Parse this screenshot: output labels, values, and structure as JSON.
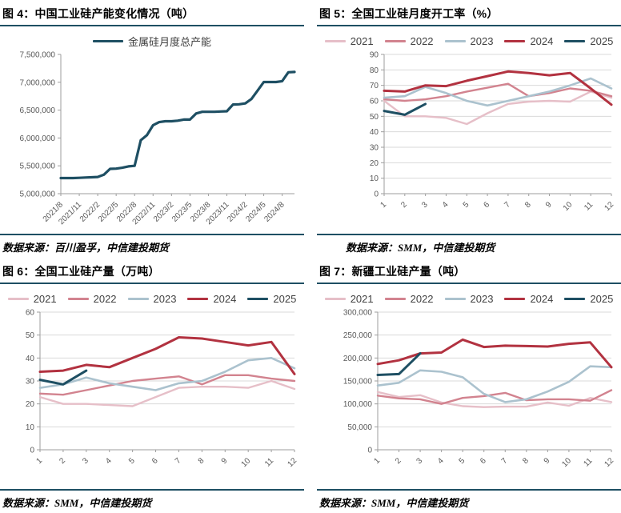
{
  "colors": {
    "accent": "#1e4f63",
    "grid": "#d9d9d9",
    "axis": "#9e9e9e",
    "tick_text": "#595959",
    "year_2021": "#e6bfc8",
    "year_2022": "#d2838f",
    "year_2023": "#abc2ce",
    "year_2024": "#b23240",
    "year_2025": "#1e4f63"
  },
  "panels": [
    {
      "title": "图 4：中国工业硅产能变化情况（吨）",
      "source": "数据来源：百川盈孚，中信建投期货"
    },
    {
      "title": "图 5：全国工业硅月度开工率（%）",
      "source": "数据来源：SMM，中信建投期货"
    },
    {
      "title": "图 6：全国工业硅产量（万吨）",
      "source": "数据来源：SMM，中信建投期货"
    },
    {
      "title": "图 7：新疆工业硅产量（吨）",
      "source": "数据来源：SMM，中信建投期货"
    }
  ],
  "chart_data": [
    {
      "id": "fig4",
      "type": "line",
      "title": "中国工业硅产能变化情况（吨）",
      "grid": false,
      "legend_position": "top",
      "ylim": [
        5000000,
        7500000
      ],
      "y_step": 500000,
      "x_tick_step": 3,
      "x_tick_labels": [
        "2021/8",
        "2021/11",
        "2022/2",
        "2022/5",
        "2022/8",
        "2022/11",
        "2023/2",
        "2023/5",
        "2023/8",
        "2023/11",
        "2024/2",
        "2024/5",
        "2024/8"
      ],
      "series": [
        {
          "name": "金属硅月度总产能",
          "color": "#1e4f63",
          "width": 3.2,
          "values": [
            5280000,
            5280000,
            5280000,
            5285000,
            5290000,
            5295000,
            5300000,
            5340000,
            5445000,
            5450000,
            5465000,
            5490000,
            5500000,
            5960000,
            6050000,
            6230000,
            6285000,
            6300000,
            6300000,
            6310000,
            6330000,
            6330000,
            6440000,
            6470000,
            6470000,
            6470000,
            6475000,
            6480000,
            6600000,
            6605000,
            6620000,
            6700000,
            6850000,
            7005000,
            7005000,
            7005000,
            7020000,
            7180000,
            7185000
          ]
        }
      ]
    },
    {
      "id": "fig5",
      "type": "line",
      "title": "全国工业硅月度开工率（%）",
      "grid": true,
      "legend_position": "top",
      "ylim": [
        0,
        90
      ],
      "y_step": 10,
      "x_tick_step": 1,
      "x_tick_labels": [
        "1",
        "2",
        "3",
        "4",
        "5",
        "6",
        "7",
        "8",
        "9",
        "10",
        "11",
        "12"
      ],
      "series": [
        {
          "name": "2021",
          "color": "#e6bfc8",
          "width": 2.4,
          "values": [
            60,
            50,
            50,
            49,
            45,
            52,
            58,
            59.5,
            60,
            59.5,
            66,
            62
          ]
        },
        {
          "name": "2022",
          "color": "#d2838f",
          "width": 2.4,
          "values": [
            61,
            60,
            61,
            63,
            66,
            68.5,
            71,
            63,
            65,
            68,
            66.5,
            63
          ]
        },
        {
          "name": "2023",
          "color": "#abc2ce",
          "width": 2.6,
          "values": [
            62,
            63,
            69,
            65,
            60,
            57,
            60,
            63,
            66,
            70,
            74.5,
            68
          ]
        },
        {
          "name": "2024",
          "color": "#b23240",
          "width": 3,
          "values": [
            66.5,
            66,
            70,
            69.5,
            73,
            76,
            79,
            78,
            76.5,
            78,
            68,
            57.5
          ]
        },
        {
          "name": "2025",
          "color": "#1e4f63",
          "width": 3,
          "values": [
            53.5,
            51,
            58
          ]
        }
      ]
    },
    {
      "id": "fig6",
      "type": "line",
      "title": "全国工业硅产量（万吨）",
      "grid": true,
      "legend_position": "top",
      "ylim": [
        0,
        60
      ],
      "y_step": 10,
      "x_tick_step": 1,
      "x_tick_labels": [
        "1",
        "2",
        "3",
        "4",
        "5",
        "6",
        "7",
        "8",
        "9",
        "10",
        "11",
        "12"
      ],
      "series": [
        {
          "name": "2021",
          "color": "#e6bfc8",
          "width": 2.4,
          "values": [
            23,
            20,
            20,
            19.5,
            19,
            23,
            27,
            27.5,
            27.5,
            27,
            30,
            26.5
          ]
        },
        {
          "name": "2022",
          "color": "#d2838f",
          "width": 2.4,
          "values": [
            24.5,
            24,
            26,
            28,
            30,
            31,
            32,
            28.5,
            32.5,
            32.5,
            31,
            30
          ]
        },
        {
          "name": "2023",
          "color": "#abc2ce",
          "width": 2.6,
          "values": [
            27,
            28.5,
            31.5,
            29,
            27.5,
            26,
            29,
            30,
            34,
            39,
            40,
            35.5
          ]
        },
        {
          "name": "2024",
          "color": "#b23240",
          "width": 3,
          "values": [
            34,
            34.5,
            37,
            36,
            40,
            44,
            49,
            48.5,
            47,
            45.5,
            47,
            33
          ]
        },
        {
          "name": "2025",
          "color": "#1e4f63",
          "width": 3,
          "values": [
            30.5,
            28.5,
            34.5
          ]
        }
      ]
    },
    {
      "id": "fig7",
      "type": "line",
      "title": "新疆工业硅产量（吨）",
      "grid": true,
      "legend_position": "top",
      "ylim": [
        0,
        300000
      ],
      "y_step": 50000,
      "x_tick_step": 1,
      "x_tick_labels": [
        "1",
        "2",
        "3",
        "4",
        "5",
        "6",
        "7",
        "8",
        "9",
        "10",
        "11",
        "12"
      ],
      "series": [
        {
          "name": "2021",
          "color": "#e6bfc8",
          "width": 2.4,
          "values": [
            126000,
            115000,
            119000,
            103000,
            95000,
            93000,
            94000,
            94000,
            103000,
            96000,
            113000,
            104000
          ]
        },
        {
          "name": "2022",
          "color": "#d2838f",
          "width": 2.4,
          "values": [
            118000,
            112000,
            110000,
            100000,
            113000,
            117000,
            124000,
            108000,
            110000,
            110000,
            107000,
            130000
          ]
        },
        {
          "name": "2023",
          "color": "#abc2ce",
          "width": 2.6,
          "values": [
            140000,
            146000,
            173000,
            170000,
            158000,
            122000,
            104000,
            110000,
            127000,
            148000,
            182000,
            180000
          ]
        },
        {
          "name": "2024",
          "color": "#b23240",
          "width": 3,
          "values": [
            187000,
            195000,
            210000,
            212000,
            240000,
            224000,
            227000,
            226000,
            225000,
            231000,
            234000,
            180000
          ]
        },
        {
          "name": "2025",
          "color": "#1e4f63",
          "width": 3,
          "values": [
            163000,
            165000,
            210000
          ]
        }
      ]
    }
  ]
}
